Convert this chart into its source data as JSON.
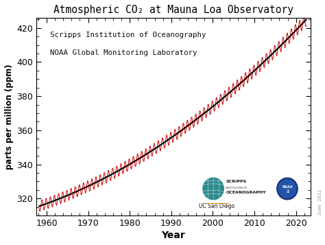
{
  "title": "Atmospheric CO₂ at Mauna Loa Observatory",
  "xlabel": "Year",
  "ylabel": "parts per million (ppm)",
  "xlim": [
    1957.5,
    2023.5
  ],
  "ylim": [
    310,
    426
  ],
  "yticks": [
    320,
    340,
    360,
    380,
    400,
    420
  ],
  "xticks": [
    1960,
    1970,
    1980,
    1990,
    2000,
    2010,
    2020
  ],
  "annotation_line1": "Scripps Institution of Oceanography",
  "annotation_line2": "NOAA Global Monitoring Laboratory",
  "watermark": "June 2022",
  "bg_color": "#ffffff",
  "plot_bg_color": "#ffffff",
  "trend_color": "#000000",
  "seasonal_color": "#cc0000",
  "scripps_globe_color": "#2e8b8b",
  "noaa_color": "#1a3a8a"
}
